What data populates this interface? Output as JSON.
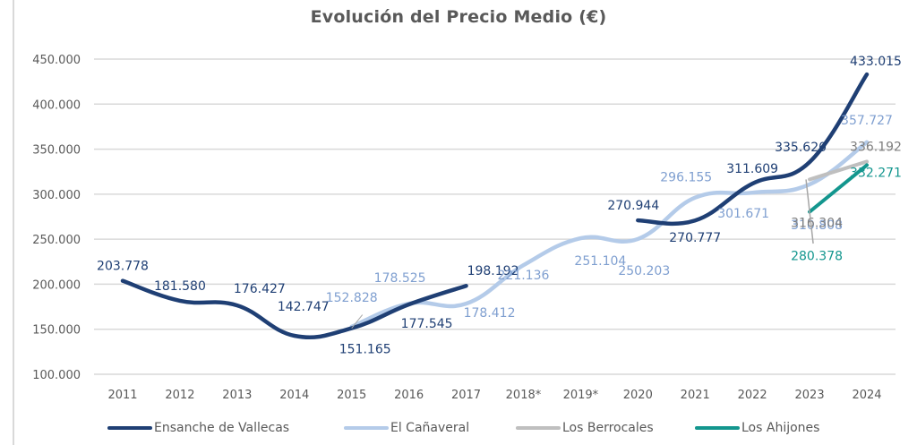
{
  "chart_data": {
    "type": "line",
    "title": "Evolución del Precio Medio (€)",
    "xlabel": "",
    "ylabel": "",
    "ylim": [
      100000,
      450000
    ],
    "yticks": [
      100000,
      150000,
      200000,
      250000,
      300000,
      350000,
      400000,
      450000
    ],
    "ytick_labels": [
      "100.000",
      "150.000",
      "200.000",
      "250.000",
      "300.000",
      "350.000",
      "400.000",
      "450.000"
    ],
    "grid": "horizontal",
    "legend_position": "bottom",
    "categories": [
      "2011",
      "2012",
      "2013",
      "2014",
      "2015",
      "2016",
      "2017",
      "2018*",
      "2019*",
      "2020",
      "2021",
      "2022",
      "2023",
      "2024"
    ],
    "series": [
      {
        "name": "Ensanche de Vallecas",
        "color": "#1f3f74",
        "values": [
          203778,
          181580,
          176427,
          142747,
          151165,
          177545,
          198192,
          null,
          null,
          270944,
          270777,
          311609,
          335620,
          433015
        ],
        "labels": [
          "203.778",
          "181.580",
          "176.427",
          "142.747",
          "151.165",
          "177.545",
          "198.192",
          null,
          null,
          "270.944",
          "270.777",
          "311.609",
          "335.620",
          "433.015"
        ]
      },
      {
        "name": "El Cañaveral",
        "color": "#b4cbe9",
        "label_color": "#7f9fd0",
        "values": [
          null,
          null,
          null,
          null,
          152828,
          178525,
          178412,
          221136,
          251104,
          250203,
          296155,
          301671,
          310808,
          357727
        ],
        "labels": [
          null,
          null,
          null,
          null,
          "152.828",
          "178.525",
          "178.412",
          "221.136",
          "251.104",
          "250.203",
          "296.155",
          "301.671",
          "310.808",
          "357.727"
        ]
      },
      {
        "name": "Los Berrocales",
        "color": "#bfbfbf",
        "label_color": "#7f7f7f",
        "values": [
          null,
          null,
          null,
          null,
          null,
          null,
          null,
          null,
          null,
          null,
          null,
          null,
          316304,
          336192
        ],
        "labels": [
          null,
          null,
          null,
          null,
          null,
          null,
          null,
          null,
          null,
          null,
          null,
          null,
          "316.304",
          "336.192"
        ]
      },
      {
        "name": "Los Ahijones",
        "color": "#13968e",
        "label_color": "#13968e",
        "values": [
          null,
          null,
          null,
          null,
          null,
          null,
          null,
          null,
          null,
          null,
          null,
          null,
          280378,
          332271
        ],
        "labels": [
          null,
          null,
          null,
          null,
          null,
          null,
          null,
          null,
          null,
          null,
          null,
          null,
          "280.378",
          "332.271"
        ]
      }
    ]
  },
  "legend": [
    {
      "label": "Ensanche de Vallecas",
      "color": "#1f3f74"
    },
    {
      "label": "El Cañaveral",
      "color": "#b4cbe9"
    },
    {
      "label": "Los Berrocales",
      "color": "#bfbfbf"
    },
    {
      "label": "Los Ahijones",
      "color": "#13968e"
    }
  ]
}
